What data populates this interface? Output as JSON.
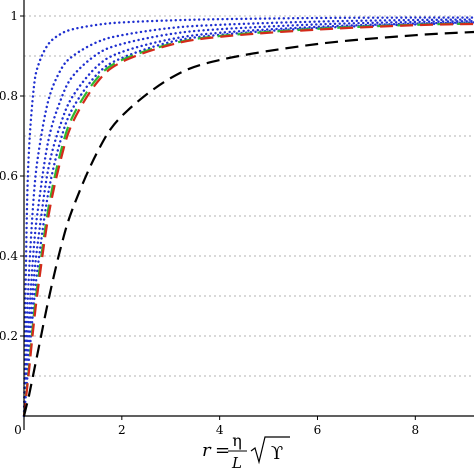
{
  "chart_data": {
    "type": "line",
    "title": "",
    "xlabel": {
      "lhs": "r",
      "eq": "=",
      "numerator": "η",
      "denominator": "L",
      "radicand": "ϒ"
    },
    "ylabel": "",
    "xlim": [
      0,
      9.2
    ],
    "ylim": [
      0,
      1.04
    ],
    "x_ticks": [
      {
        "value": 0,
        "label": "0"
      },
      {
        "value": 2,
        "label": "2"
      },
      {
        "value": 4,
        "label": "4"
      },
      {
        "value": 6,
        "label": "6"
      },
      {
        "value": 8,
        "label": "8"
      }
    ],
    "y_ticks": [
      {
        "value": 0.2,
        "label": "0.2"
      },
      {
        "value": 0.4,
        "label": "0.4"
      },
      {
        "value": 0.6,
        "label": "0.6"
      },
      {
        "value": 0.8,
        "label": "0.8"
      },
      {
        "value": 1.0,
        "label": "1"
      }
    ],
    "y_grid_values": [
      0.1,
      0.2,
      0.3,
      0.4,
      0.5,
      0.6,
      0.7,
      0.8,
      0.9,
      1.0
    ],
    "grid": true,
    "legend": "none",
    "series": [
      {
        "style": "dotted",
        "color": "#1f2fd0",
        "x": [
          0,
          0.05,
          0.1,
          0.2,
          0.3,
          0.5,
          0.75,
          1,
          1.5,
          2,
          3,
          4,
          6,
          8,
          9.2
        ],
        "y": [
          0,
          0.45,
          0.66,
          0.82,
          0.88,
          0.93,
          0.955,
          0.967,
          0.978,
          0.984,
          0.989,
          0.992,
          0.995,
          0.996,
          0.996
        ]
      },
      {
        "style": "dotted",
        "color": "#1f2fd0",
        "x": [
          0,
          0.05,
          0.1,
          0.2,
          0.3,
          0.5,
          0.75,
          1,
          1.5,
          2,
          3,
          4,
          6,
          8,
          9.2
        ],
        "y": [
          0,
          0.2,
          0.35,
          0.55,
          0.66,
          0.79,
          0.865,
          0.9,
          0.935,
          0.952,
          0.97,
          0.978,
          0.986,
          0.99,
          0.991
        ]
      },
      {
        "style": "dotted",
        "color": "#1f2fd0",
        "x": [
          0,
          0.05,
          0.1,
          0.2,
          0.3,
          0.5,
          0.75,
          1,
          1.5,
          2,
          3,
          4,
          6,
          8,
          9.2
        ],
        "y": [
          0,
          0.13,
          0.24,
          0.42,
          0.53,
          0.69,
          0.79,
          0.85,
          0.905,
          0.93,
          0.955,
          0.967,
          0.979,
          0.985,
          0.987
        ]
      },
      {
        "style": "dotted",
        "color": "#1f2fd0",
        "x": [
          0,
          0.05,
          0.1,
          0.2,
          0.3,
          0.5,
          0.75,
          1,
          1.5,
          2,
          3,
          4,
          6,
          8,
          9.2
        ],
        "y": [
          0,
          0.09,
          0.18,
          0.34,
          0.45,
          0.62,
          0.73,
          0.8,
          0.875,
          0.91,
          0.942,
          0.958,
          0.973,
          0.981,
          0.984
        ]
      },
      {
        "style": "dotted",
        "color": "#1f2fd0",
        "x": [
          0,
          0.05,
          0.1,
          0.2,
          0.3,
          0.5,
          0.75,
          1,
          1.5,
          2,
          3,
          4,
          6,
          8,
          9.2
        ],
        "y": [
          0,
          0.07,
          0.14,
          0.28,
          0.39,
          0.56,
          0.69,
          0.77,
          0.855,
          0.895,
          0.935,
          0.953,
          0.97,
          0.979,
          0.982
        ]
      },
      {
        "style": "dashed",
        "color": "#2fb82f",
        "x": [
          0,
          0.05,
          0.1,
          0.2,
          0.3,
          0.5,
          0.75,
          1,
          1.5,
          2,
          3,
          4,
          6,
          8,
          9.2
        ],
        "y": [
          0,
          0.06,
          0.12,
          0.25,
          0.35,
          0.52,
          0.66,
          0.75,
          0.845,
          0.89,
          0.93,
          0.95,
          0.968,
          0.978,
          0.981
        ]
      },
      {
        "style": "dashed",
        "color": "#d42a1a",
        "x": [
          0,
          0.05,
          0.1,
          0.2,
          0.3,
          0.5,
          0.75,
          1,
          1.5,
          2,
          3,
          4,
          6,
          8,
          9.2
        ],
        "y": [
          0,
          0.055,
          0.11,
          0.23,
          0.33,
          0.5,
          0.64,
          0.735,
          0.835,
          0.885,
          0.928,
          0.948,
          0.966,
          0.977,
          0.98
        ]
      },
      {
        "style": "dashed",
        "color": "#000000",
        "x": [
          0,
          0.05,
          0.1,
          0.2,
          0.3,
          0.5,
          0.75,
          1,
          1.5,
          2,
          3,
          4,
          6,
          8,
          9.2
        ],
        "y": [
          0,
          0.025,
          0.05,
          0.11,
          0.17,
          0.29,
          0.42,
          0.52,
          0.66,
          0.75,
          0.845,
          0.89,
          0.93,
          0.952,
          0.96
        ]
      }
    ]
  }
}
